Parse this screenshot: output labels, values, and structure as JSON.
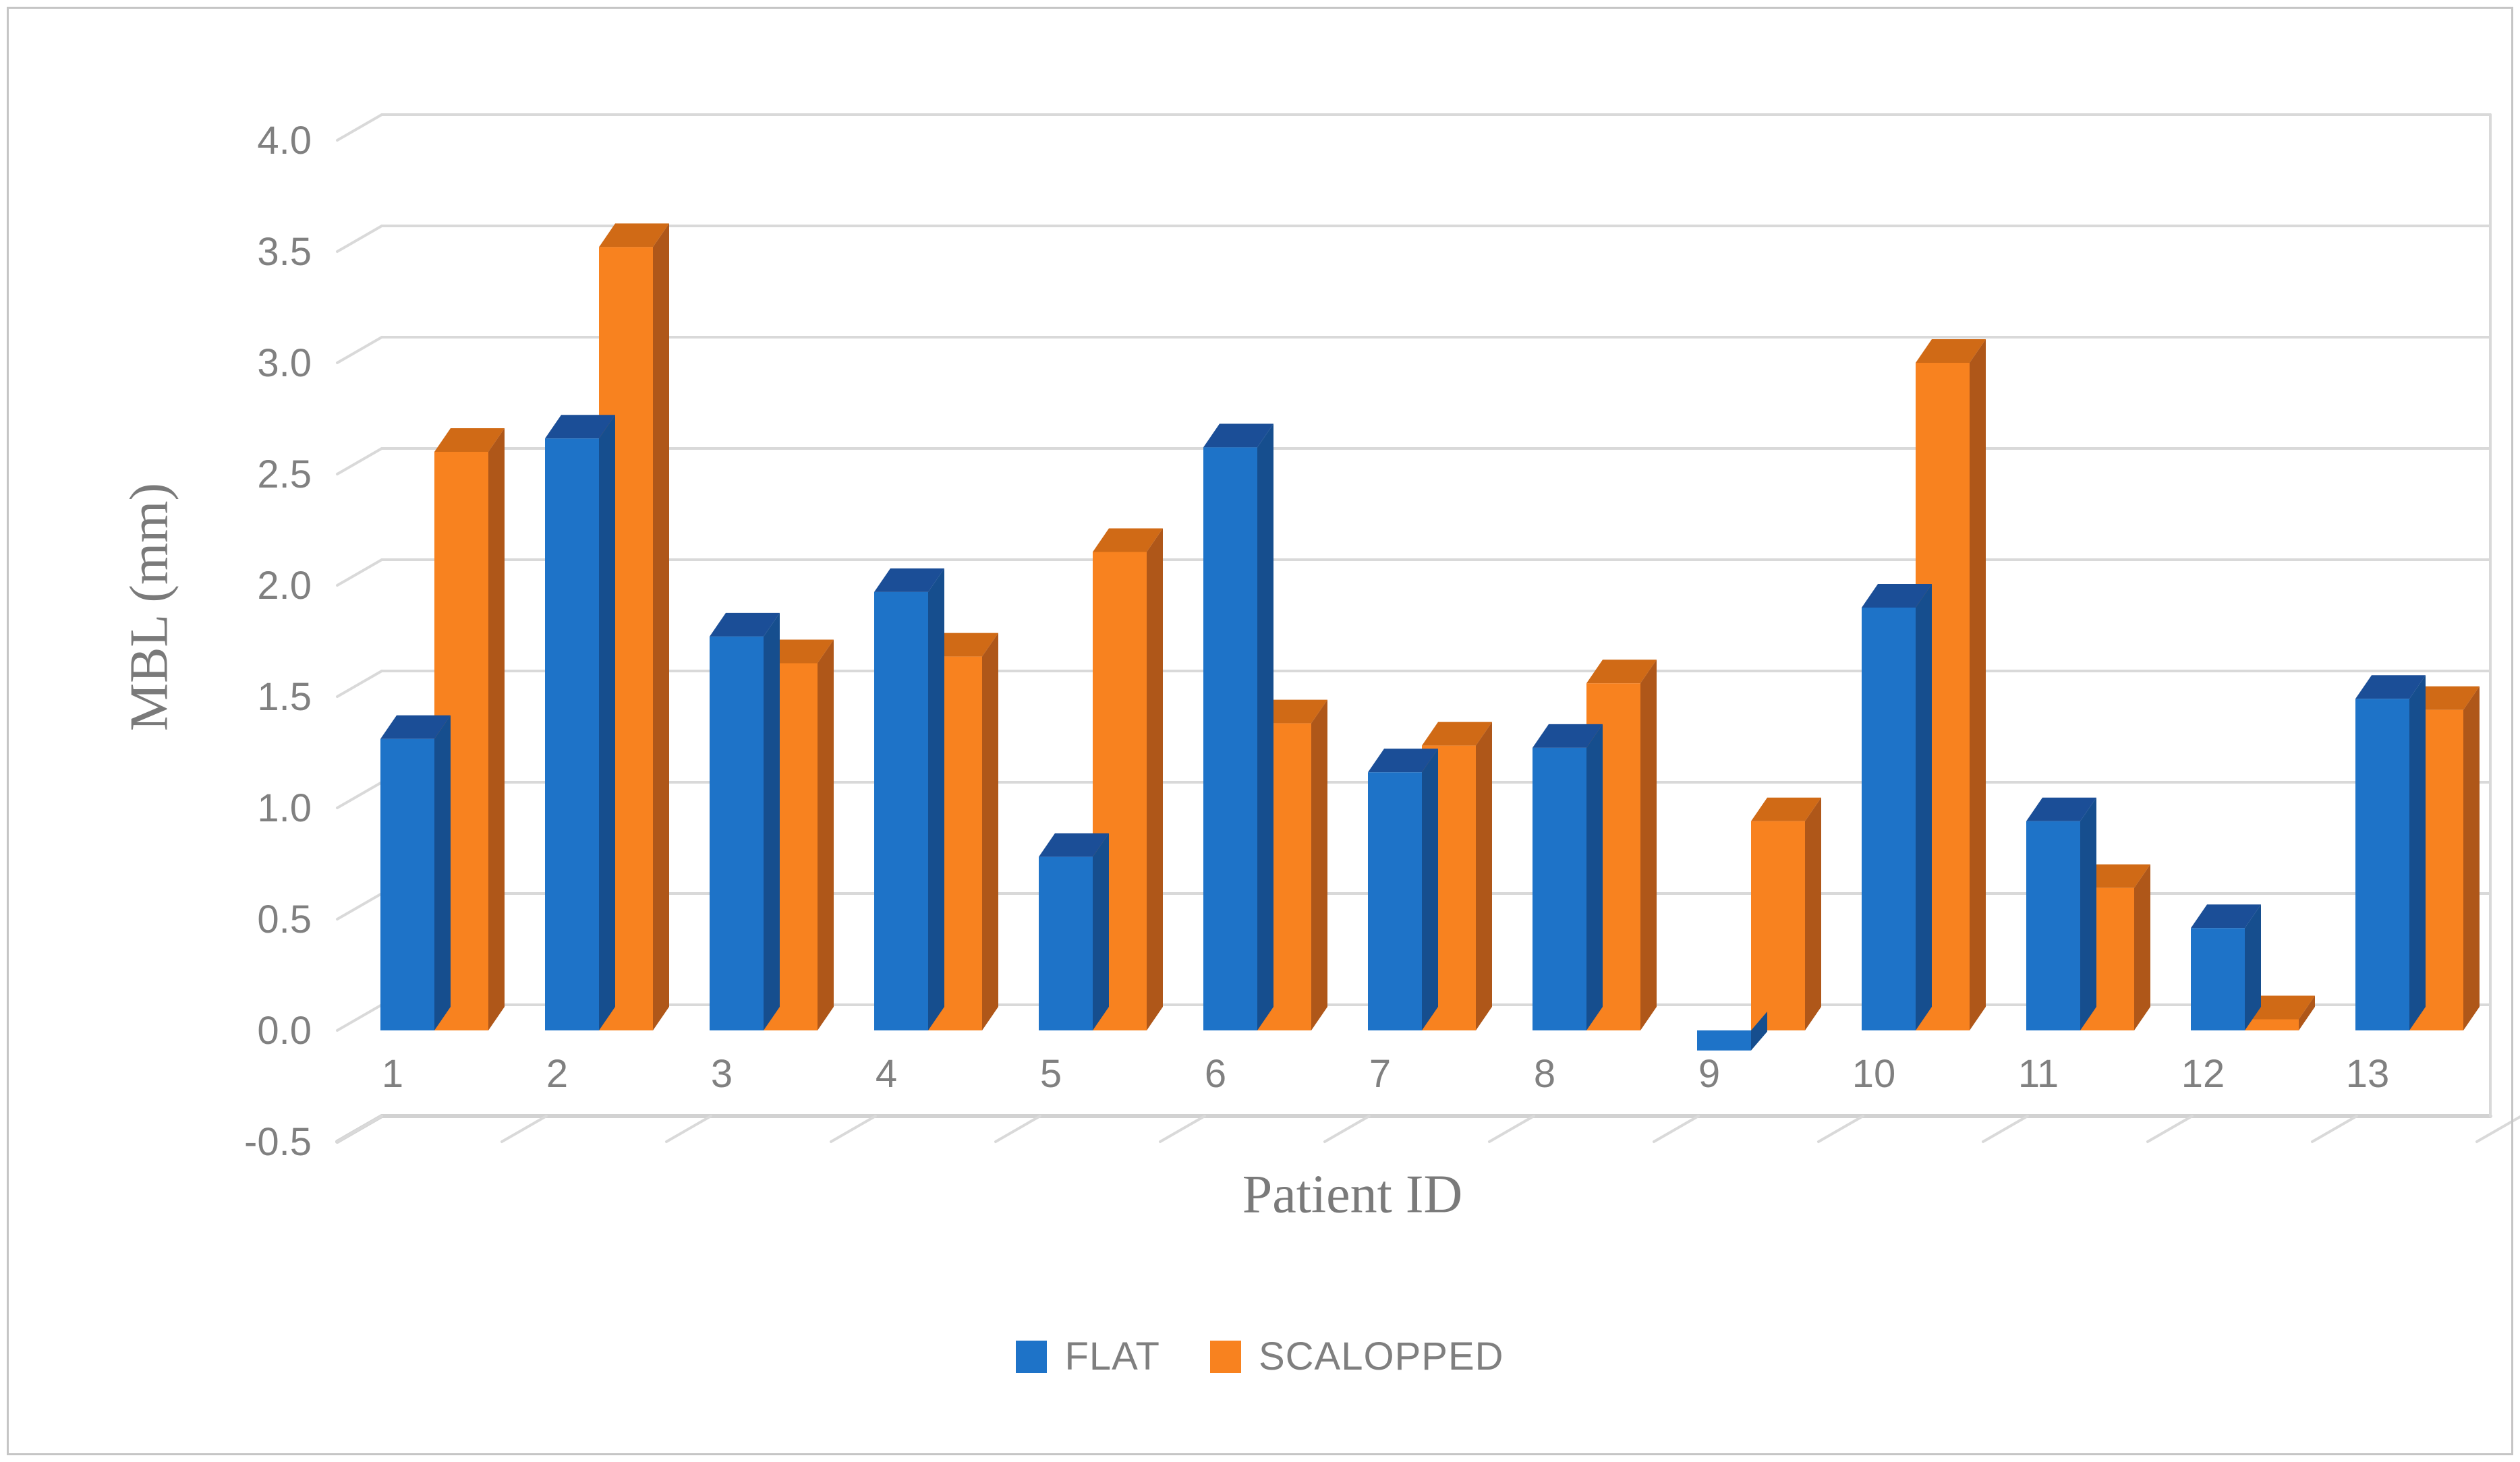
{
  "figure": {
    "background": "#ffffff",
    "border_color": "#c5c5c5"
  },
  "chart_data": {
    "type": "bar",
    "subtype": "3d-clustered-column",
    "title": "",
    "xlabel": "Patient ID",
    "ylabel": "MBL (mm)",
    "categories": [
      "1",
      "2",
      "3",
      "4",
      "5",
      "6",
      "7",
      "8",
      "9",
      "10",
      "11",
      "12",
      "13"
    ],
    "series": [
      {
        "name": "FLAT",
        "values": [
          1.31,
          2.66,
          1.77,
          1.97,
          0.78,
          2.62,
          1.16,
          1.27,
          -0.09,
          1.9,
          0.94,
          0.46,
          1.49
        ]
      },
      {
        "name": "SCALOPPED",
        "values": [
          2.6,
          3.52,
          1.65,
          1.68,
          2.15,
          1.38,
          1.28,
          1.56,
          0.94,
          3.0,
          0.64,
          0.05,
          1.44
        ]
      }
    ],
    "ylim": [
      -0.5,
      4.0
    ],
    "y_ticks": [
      4.0,
      3.5,
      3.0,
      2.5,
      2.0,
      1.5,
      1.0,
      0.5,
      0.0,
      -0.5
    ],
    "y_tick_labels": [
      "4.0",
      "3.5",
      "3.0",
      "2.5",
      "2.0",
      "1.5",
      "1.0",
      "0.5",
      "0.0",
      "-0.5"
    ],
    "grid": true,
    "legend_position": "bottom",
    "colors": {
      "flat_front": "#1E73C8",
      "flat_top": "#1B4E97",
      "flat_side": "#164E8E",
      "scalopped_front": "#F8821F",
      "scalopped_top": "#D06A16",
      "scalopped_side": "#AF5719",
      "gridline": "#D9D9D9",
      "axis_line": "#D2D2D2",
      "tick_label": "#808080",
      "axis_title": "#7a7a7a",
      "legend_text": "#7f7f7f"
    }
  }
}
